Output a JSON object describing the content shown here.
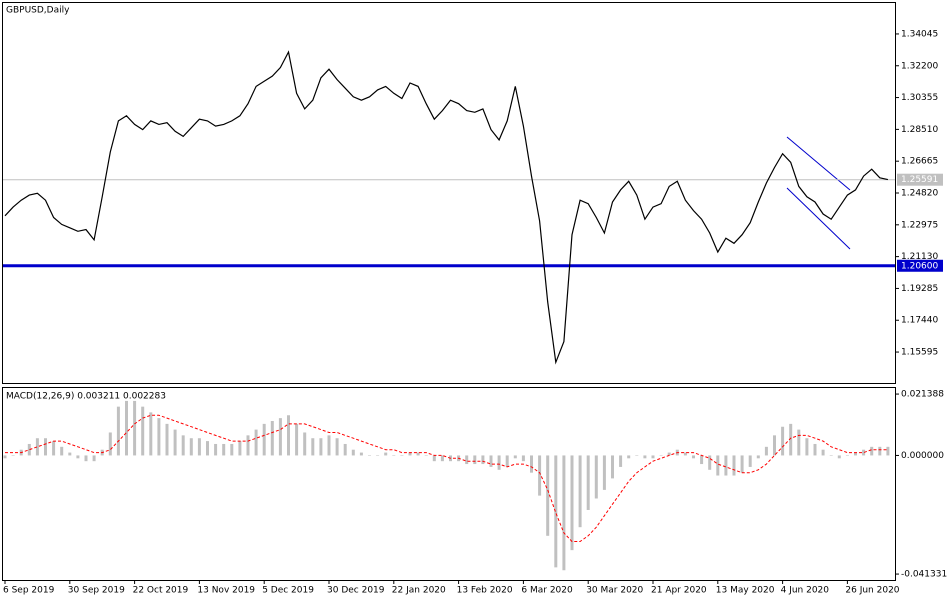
{
  "chart_data": [
    {
      "type": "line",
      "title": "GBPUSD,Daily",
      "color": "#000000",
      "values": [
        1.235,
        1.24,
        1.244,
        1.247,
        1.248,
        1.244,
        1.234,
        1.23,
        1.228,
        1.226,
        1.227,
        1.221,
        1.246,
        1.272,
        1.29,
        1.293,
        1.288,
        1.285,
        1.29,
        1.288,
        1.289,
        1.284,
        1.281,
        1.286,
        1.291,
        1.29,
        1.287,
        1.288,
        1.29,
        1.293,
        1.3,
        1.31,
        1.313,
        1.316,
        1.321,
        1.33,
        1.306,
        1.297,
        1.302,
        1.315,
        1.32,
        1.314,
        1.309,
        1.304,
        1.302,
        1.304,
        1.308,
        1.31,
        1.306,
        1.303,
        1.312,
        1.31,
        1.3,
        1.291,
        1.296,
        1.302,
        1.3,
        1.296,
        1.295,
        1.297,
        1.285,
        1.279,
        1.29,
        1.31,
        1.287,
        1.258,
        1.232,
        1.185,
        1.15,
        1.162,
        1.224,
        1.244,
        1.242,
        1.234,
        1.225,
        1.243,
        1.25,
        1.255,
        1.247,
        1.233,
        1.24,
        1.242,
        1.252,
        1.255,
        1.244,
        1.238,
        1.233,
        1.225,
        1.214,
        1.222,
        1.219,
        1.224,
        1.231,
        1.243,
        1.254,
        1.263,
        1.271,
        1.266,
        1.252,
        1.246,
        1.243,
        1.236,
        1.233,
        1.24,
        1.247,
        1.25,
        1.258,
        1.262,
        1.257,
        1.256
      ],
      "ylim": [
        1.138,
        1.3584
      ],
      "yticks": [
        1.34045,
        {
          "value": 1.322,
          "label": "1.32200"
        },
        1.30355,
        {
          "value": 1.2851,
          "label": "1.28510"
        },
        1.26665,
        {
          "value": 1.2482,
          "label": "1.24820"
        },
        1.22975,
        {
          "value": 1.2113,
          "label": "1.21130"
        },
        1.19285,
        {
          "value": 1.1744,
          "label": "1.17440"
        },
        1.15595
      ],
      "hlines": [
        {
          "value": 1.25591,
          "label": "1.25591",
          "color": "#c0c0c0"
        },
        {
          "value": 1.206,
          "label": "1.20600",
          "color": "#0000cc"
        }
      ]
    },
    {
      "type": "bar",
      "title": "MACD(12,26,9) 0.003211 0.002283",
      "color": "#c0c0c0",
      "categories": [
        "6 Sep 2019",
        null,
        null,
        null,
        null,
        null,
        null,
        null,
        "30 Sep 2019",
        null,
        null,
        null,
        null,
        null,
        null,
        null,
        "22 Oct 2019",
        null,
        null,
        null,
        null,
        null,
        null,
        null,
        "13 Nov 2019",
        null,
        null,
        null,
        null,
        null,
        null,
        null,
        "5 Dec 2019",
        null,
        null,
        null,
        null,
        null,
        null,
        null,
        "30 Dec 2019",
        null,
        null,
        null,
        null,
        null,
        null,
        null,
        "22 Jan 2020",
        null,
        null,
        null,
        null,
        null,
        null,
        null,
        "13 Feb 2020",
        null,
        null,
        null,
        null,
        null,
        null,
        null,
        "6 Mar 2020",
        null,
        null,
        null,
        null,
        null,
        null,
        null,
        "30 Mar 2020",
        null,
        null,
        null,
        null,
        null,
        null,
        null,
        "21 Apr 2020",
        null,
        null,
        null,
        null,
        null,
        null,
        null,
        "13 May 2020",
        null,
        null,
        null,
        null,
        null,
        null,
        null,
        "4 Jun 2020",
        null,
        null,
        null,
        null,
        null,
        null,
        null,
        "26 Jun 2020",
        null,
        null,
        null,
        null,
        null
      ],
      "values": [
        -0.001,
        0.0,
        0.002,
        0.004,
        0.006,
        0.006,
        0.005,
        0.003,
        0.001,
        -0.001,
        -0.002,
        -0.002,
        0.002,
        0.008,
        0.017,
        0.019,
        0.019,
        0.017,
        0.015,
        0.013,
        0.011,
        0.009,
        0.007,
        0.006,
        0.006,
        0.005,
        0.004,
        0.004,
        0.004,
        0.005,
        0.007,
        0.009,
        0.011,
        0.012,
        0.013,
        0.014,
        0.011,
        0.008,
        0.006,
        0.006,
        0.007,
        0.006,
        0.004,
        0.002,
        0.001,
        0.0,
        0.0,
        0.001,
        0.0,
        0.0,
        0.001,
        0.001,
        0.0,
        -0.002,
        -0.002,
        -0.002,
        -0.002,
        -0.003,
        -0.003,
        -0.003,
        -0.004,
        -0.005,
        -0.004,
        -0.001,
        -0.002,
        -0.006,
        -0.014,
        -0.028,
        -0.039,
        -0.04,
        -0.033,
        -0.025,
        -0.019,
        -0.015,
        -0.012,
        -0.008,
        -0.004,
        -0.001,
        0.0,
        -0.001,
        -0.001,
        0.0,
        0.001,
        0.002,
        0.001,
        -0.001,
        -0.003,
        -0.005,
        -0.007,
        -0.007,
        -0.007,
        -0.006,
        -0.004,
        -0.001,
        0.003,
        0.007,
        0.01,
        0.011,
        0.009,
        0.006,
        0.004,
        0.002,
        0.0,
        -0.001,
        0.0,
        0.001,
        0.002,
        0.003,
        0.003,
        0.003
      ],
      "signal_color": "#ff0000",
      "signal_values": [
        0.001,
        0.001,
        0.001,
        0.002,
        0.003,
        0.004,
        0.005,
        0.005,
        0.004,
        0.003,
        0.002,
        0.001,
        0.001,
        0.002,
        0.005,
        0.008,
        0.011,
        0.013,
        0.014,
        0.014,
        0.013,
        0.012,
        0.011,
        0.01,
        0.009,
        0.008,
        0.007,
        0.006,
        0.005,
        0.005,
        0.005,
        0.006,
        0.007,
        0.008,
        0.009,
        0.011,
        0.011,
        0.011,
        0.01,
        0.009,
        0.008,
        0.008,
        0.007,
        0.006,
        0.005,
        0.004,
        0.003,
        0.002,
        0.002,
        0.001,
        0.001,
        0.001,
        0.001,
        0.0,
        0.0,
        -0.001,
        -0.001,
        -0.002,
        -0.002,
        -0.002,
        -0.003,
        -0.003,
        -0.004,
        -0.003,
        -0.003,
        -0.004,
        -0.006,
        -0.012,
        -0.02,
        -0.027,
        -0.03,
        -0.03,
        -0.028,
        -0.025,
        -0.021,
        -0.017,
        -0.013,
        -0.009,
        -0.006,
        -0.004,
        -0.002,
        -0.001,
        0.0,
        0.001,
        0.001,
        0.001,
        0.0,
        -0.001,
        -0.003,
        -0.004,
        -0.005,
        -0.006,
        -0.006,
        -0.005,
        -0.003,
        0.0,
        0.003,
        0.006,
        0.007,
        0.007,
        0.006,
        0.005,
        0.003,
        0.002,
        0.001,
        0.001,
        0.001,
        0.002,
        0.002,
        0.002
      ],
      "ylim": [
        -0.0434,
        0.0235
      ],
      "yticks": [
        0.021388,
        {
          "value": 0,
          "label": "0.000000"
        },
        -0.041331
      ]
    }
  ]
}
